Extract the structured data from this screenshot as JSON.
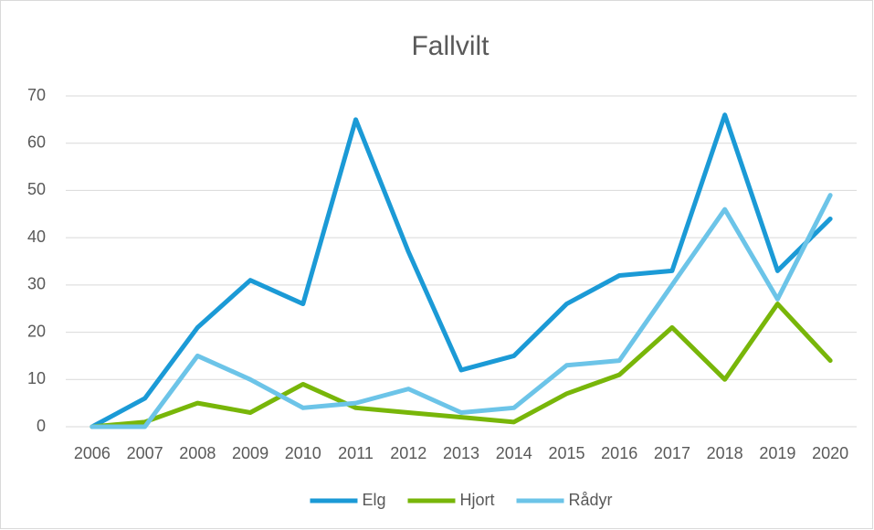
{
  "chart_data": {
    "type": "line",
    "title": "Fallvilt",
    "categories": [
      "2006",
      "2007",
      "2008",
      "2009",
      "2010",
      "2011",
      "2012",
      "2013",
      "2014",
      "2015",
      "2016",
      "2017",
      "2018",
      "2019",
      "2020"
    ],
    "series": [
      {
        "name": "Elg",
        "color": "#1b9ad6",
        "values": [
          0,
          6,
          21,
          31,
          26,
          65,
          37,
          12,
          15,
          26,
          32,
          33,
          66,
          33,
          44
        ]
      },
      {
        "name": "Hjort",
        "color": "#78b609",
        "values": [
          0,
          1,
          5,
          3,
          9,
          4,
          3,
          2,
          1,
          7,
          11,
          21,
          10,
          26,
          14
        ]
      },
      {
        "name": "Rådyr",
        "color": "#6cc4e8",
        "values": [
          0,
          0,
          15,
          10,
          4,
          5,
          8,
          3,
          4,
          13,
          14,
          30,
          46,
          27,
          49
        ]
      }
    ],
    "ylim": [
      0,
      70
    ],
    "yticks": [
      0,
      10,
      20,
      30,
      40,
      50,
      60,
      70
    ],
    "grid": true,
    "legend": "bottom"
  }
}
